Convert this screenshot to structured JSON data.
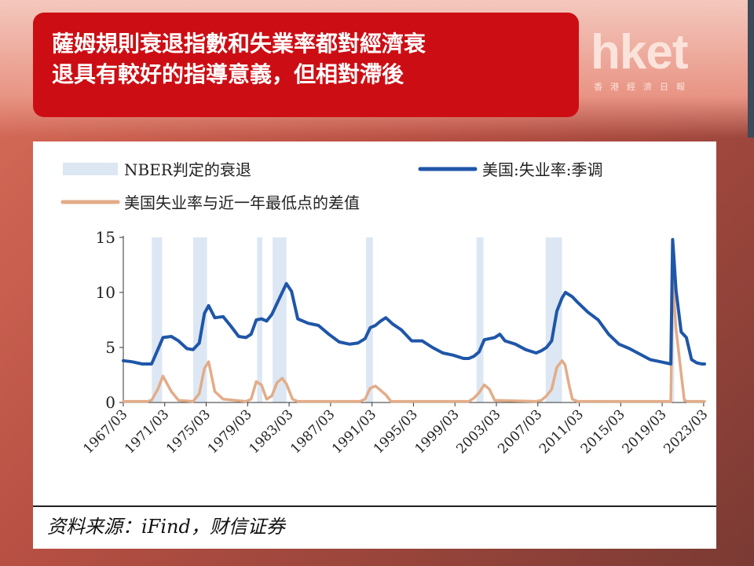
{
  "headline": {
    "line1": "薩姆規則衰退指數和失業率都對經濟衰",
    "line2": "退具有較好的指導意義，但相對滯後"
  },
  "logo": {
    "main": "hket",
    "sub": "香港經濟日報"
  },
  "source": "资料来源：iFind，财信证券",
  "chart_data": {
    "type": "line",
    "legend": {
      "recession": "NBER判定的衰退",
      "unemployment": "美国:失业率:季调",
      "gap": "美国失业率与近一年最低点的差值"
    },
    "ylim": [
      0,
      15
    ],
    "yticks": [
      "0",
      "5",
      "10",
      "15"
    ],
    "xticks": [
      "1967/03",
      "1971/03",
      "1975/03",
      "1979/03",
      "1983/03",
      "1987/03",
      "1991/03",
      "1995/03",
      "1999/03",
      "2003/03",
      "2007/03",
      "2011/03",
      "2015/03",
      "2019/03",
      "2023/03"
    ],
    "xrange": [
      1967.17,
      2023.25
    ],
    "colors": {
      "unemployment": "#1f56a8",
      "gap": "#e2ac88",
      "recession": "#dce7f3"
    },
    "recessions": [
      [
        1969.92,
        1970.92
      ],
      [
        1973.92,
        1975.25
      ],
      [
        1980.08,
        1980.58
      ],
      [
        1981.58,
        1982.92
      ],
      [
        1990.58,
        1991.25
      ],
      [
        2001.25,
        2001.92
      ],
      [
        2007.92,
        2009.5
      ],
      [
        2020.17,
        2020.33
      ]
    ],
    "series": [
      {
        "key": "unemployment",
        "name": "美国:失业率:季调",
        "x": [
          1967.17,
          1968.0,
          1969.0,
          1969.9,
          1970.5,
          1971.0,
          1971.8,
          1972.5,
          1973.3,
          1973.9,
          1974.5,
          1975.0,
          1975.4,
          1976.0,
          1976.8,
          1977.5,
          1978.3,
          1979.0,
          1979.5,
          1980.0,
          1980.5,
          1981.0,
          1981.5,
          1982.0,
          1982.5,
          1982.9,
          1983.4,
          1984.0,
          1985.0,
          1986.0,
          1987.0,
          1988.0,
          1989.0,
          1989.8,
          1990.5,
          1991.0,
          1991.5,
          1992.0,
          1992.5,
          1993.2,
          1994.0,
          1995.0,
          1996.0,
          1997.0,
          1998.0,
          1999.0,
          2000.0,
          2000.5,
          2001.0,
          2001.5,
          2002.0,
          2002.5,
          2003.0,
          2003.5,
          2004.0,
          2005.0,
          2006.0,
          2007.0,
          2007.5,
          2008.0,
          2008.5,
          2009.0,
          2009.5,
          2009.83,
          2010.5,
          2011.0,
          2012.0,
          2013.0,
          2014.0,
          2015.0,
          2016.0,
          2017.0,
          2018.0,
          2019.0,
          2020.0,
          2020.17,
          2020.29,
          2020.5,
          2021.0,
          2021.5,
          2022.0,
          2022.5,
          2023.0,
          2023.25
        ],
        "values": [
          3.8,
          3.7,
          3.5,
          3.5,
          4.8,
          5.9,
          6.0,
          5.6,
          4.9,
          4.8,
          5.4,
          8.1,
          8.8,
          7.7,
          7.8,
          7.0,
          6.0,
          5.9,
          6.2,
          7.5,
          7.6,
          7.4,
          8.0,
          9.0,
          10.0,
          10.8,
          10.1,
          7.6,
          7.2,
          7.0,
          6.2,
          5.5,
          5.3,
          5.4,
          5.8,
          6.8,
          7.0,
          7.4,
          7.7,
          7.1,
          6.6,
          5.6,
          5.6,
          5.0,
          4.5,
          4.3,
          4.0,
          4.0,
          4.2,
          4.6,
          5.7,
          5.8,
          5.9,
          6.2,
          5.6,
          5.3,
          4.8,
          4.5,
          4.7,
          5.0,
          5.6,
          8.3,
          9.5,
          10.0,
          9.6,
          9.1,
          8.2,
          7.5,
          6.2,
          5.3,
          4.9,
          4.4,
          3.9,
          3.7,
          3.5,
          14.8,
          13.3,
          10.2,
          6.4,
          5.9,
          3.9,
          3.6,
          3.5,
          3.5
        ]
      },
      {
        "key": "gap",
        "name": "美国失业率与近一年最低点的差值",
        "x": [
          1967.17,
          1969.5,
          1969.9,
          1970.5,
          1971.0,
          1971.8,
          1972.5,
          1973.9,
          1974.5,
          1975.0,
          1975.4,
          1976.0,
          1976.8,
          1979.0,
          1979.5,
          1980.0,
          1980.5,
          1981.0,
          1981.5,
          1982.0,
          1982.5,
          1982.9,
          1983.5,
          1984.0,
          1990.0,
          1990.5,
          1991.0,
          1991.5,
          1992.0,
          1992.5,
          1993.0,
          2000.5,
          2001.0,
          2001.5,
          2002.0,
          2002.5,
          2003.0,
          2007.0,
          2007.5,
          2008.0,
          2008.5,
          2009.0,
          2009.5,
          2009.8,
          2010.2,
          2010.5,
          2011.0,
          2020.0,
          2020.17,
          2020.29,
          2020.5,
          2021.0,
          2021.3,
          2021.6,
          2023.25
        ],
        "values": [
          0.1,
          0.1,
          0.2,
          1.2,
          2.4,
          1.0,
          0.2,
          0.1,
          0.8,
          3.1,
          3.7,
          1.0,
          0.3,
          0.1,
          0.3,
          1.9,
          1.6,
          0.3,
          0.6,
          1.8,
          2.2,
          1.7,
          0.3,
          0.1,
          0.1,
          0.3,
          1.3,
          1.5,
          1.1,
          0.7,
          0.1,
          0.1,
          0.4,
          0.9,
          1.6,
          1.2,
          0.2,
          0.1,
          0.2,
          0.6,
          1.2,
          3.2,
          3.8,
          3.4,
          1.5,
          0.3,
          0.1,
          0.1,
          11.4,
          9.8,
          6.7,
          2.6,
          0.2,
          0.1,
          0.1
        ]
      }
    ]
  }
}
